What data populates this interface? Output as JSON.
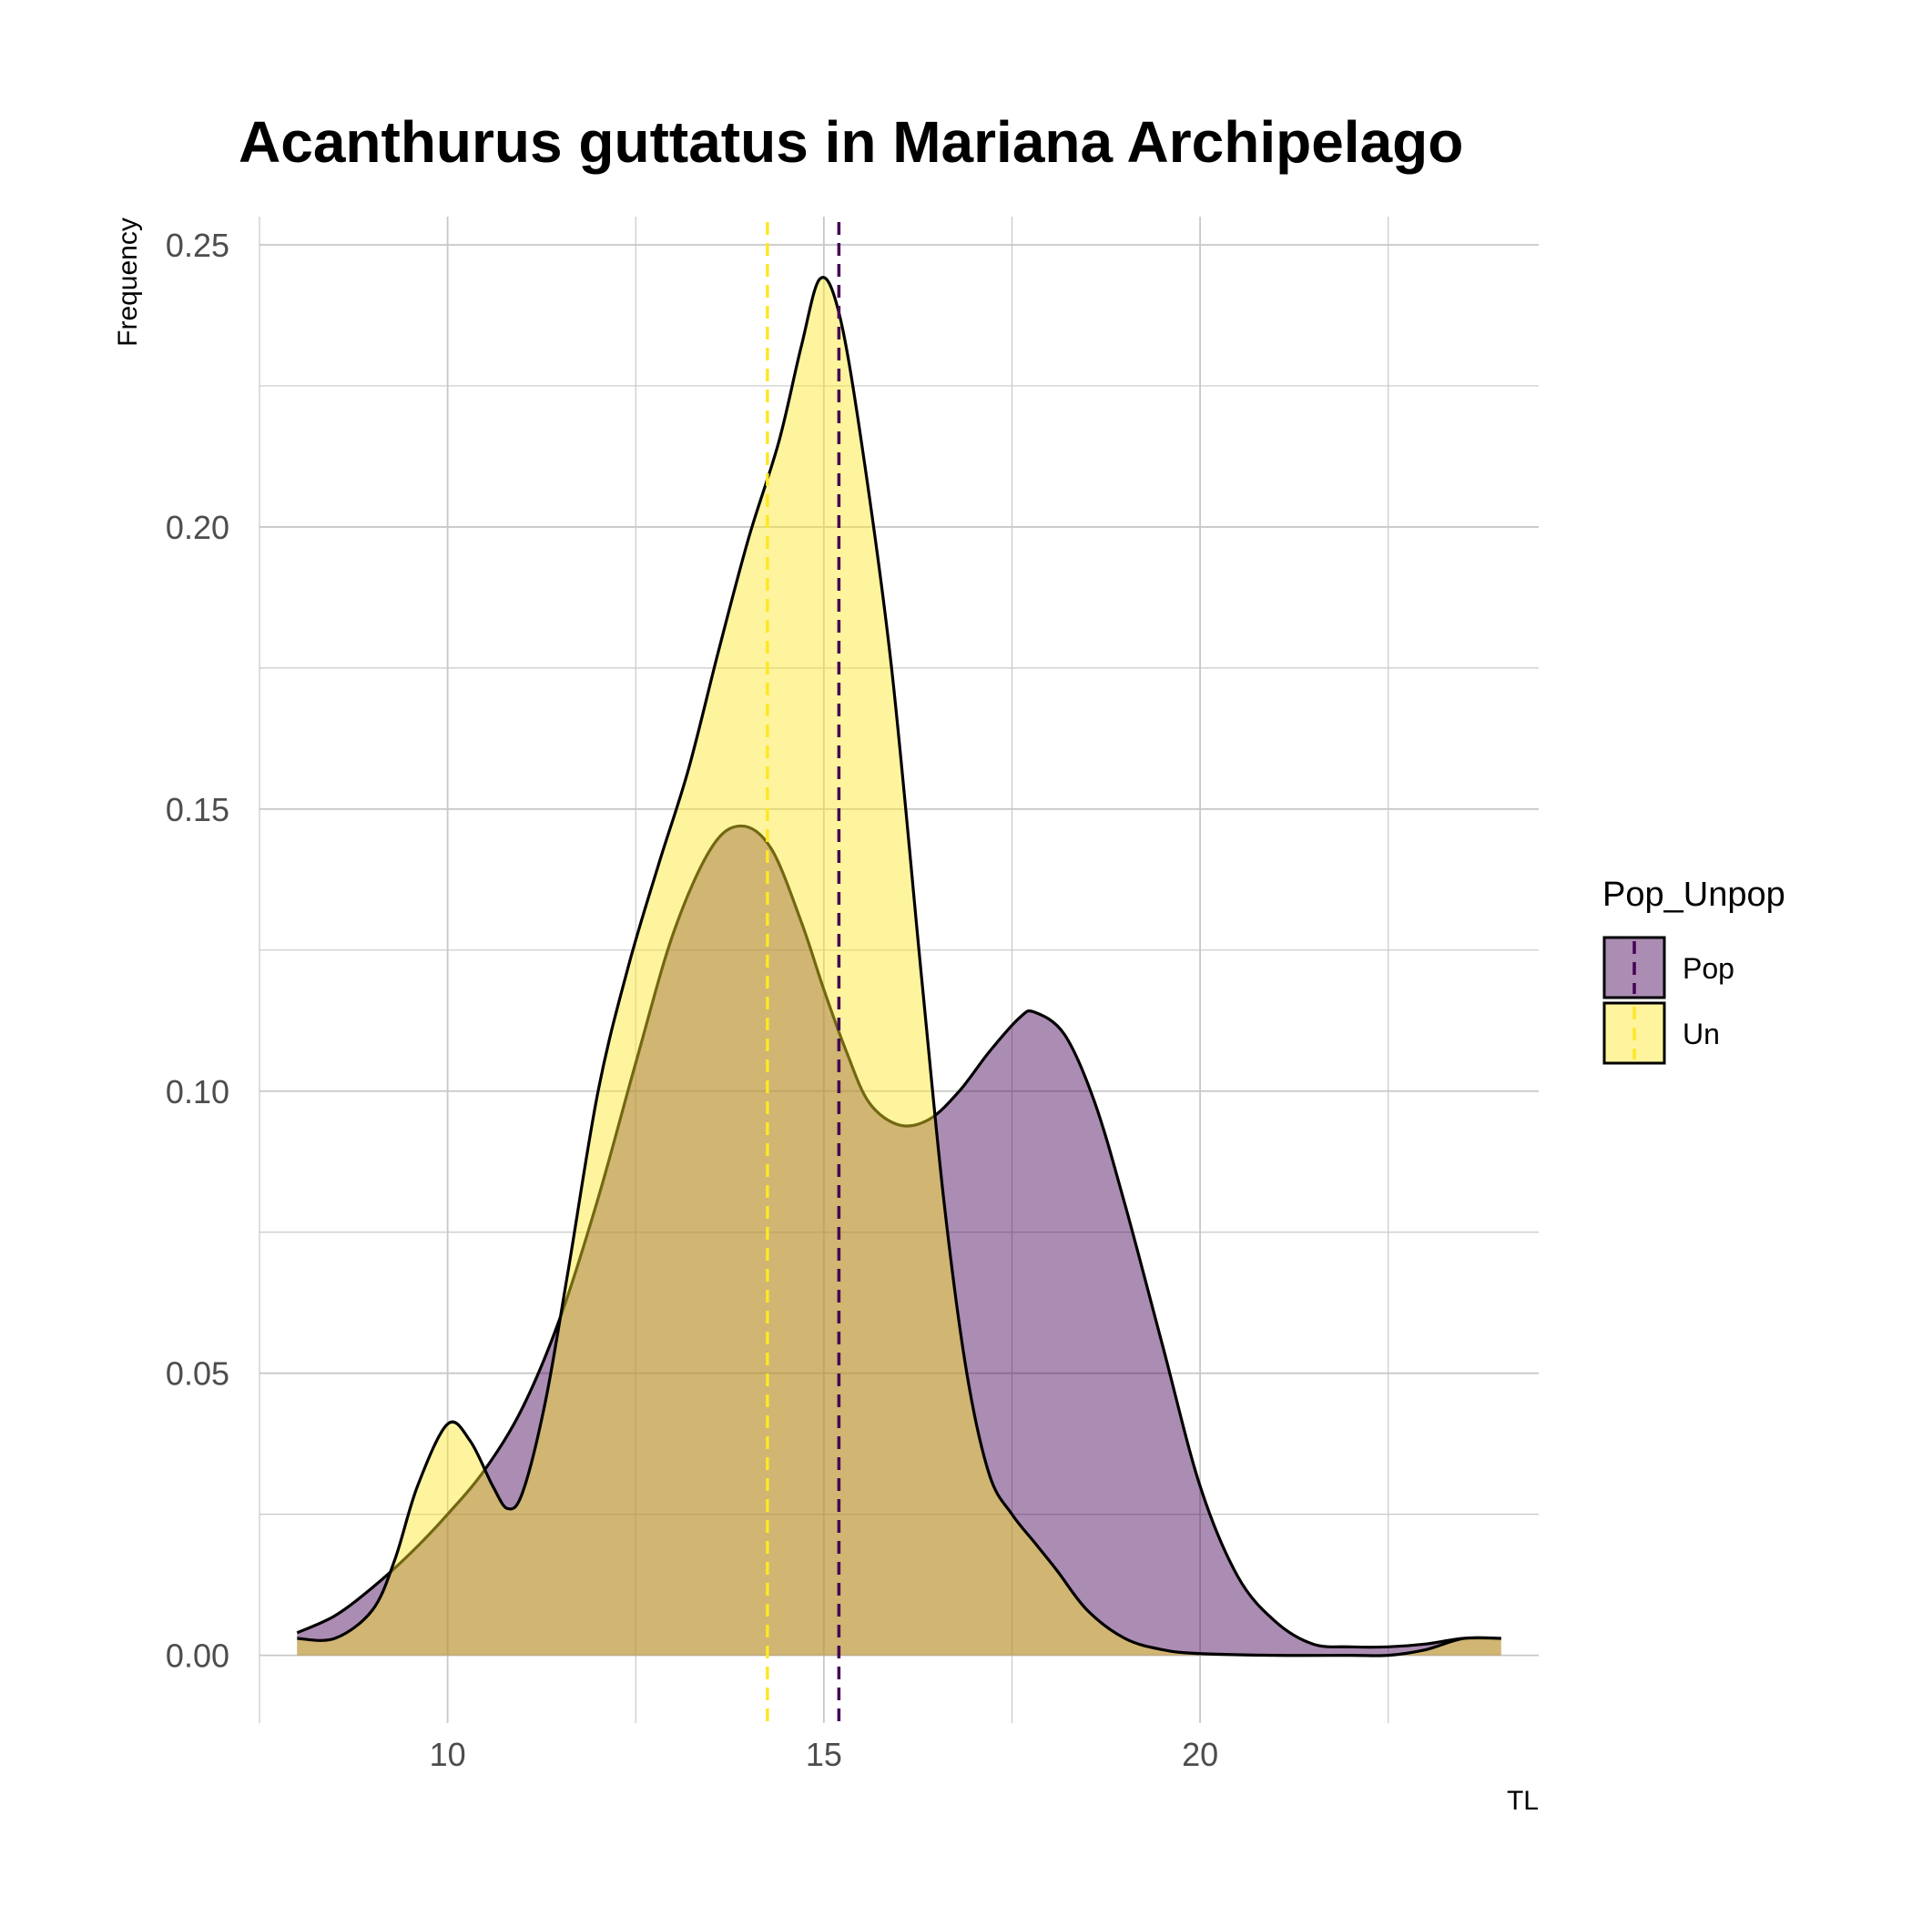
{
  "chart_data": {
    "type": "area",
    "title": "Acanthurus guttatus in Mariana Archipelago",
    "xlabel": "TL",
    "ylabel": "Frequency",
    "xlim": [
      7.5,
      24.5
    ],
    "ylim": [
      -0.012,
      0.255
    ],
    "x_ticks": [
      {
        "value": 10,
        "label": "10"
      },
      {
        "value": 15,
        "label": "15"
      },
      {
        "value": 20,
        "label": "20"
      }
    ],
    "x_minor_ticks": [
      7.5,
      12.5,
      17.5,
      22.5
    ],
    "y_ticks": [
      {
        "value": 0.0,
        "label": "0.00"
      },
      {
        "value": 0.05,
        "label": "0.05"
      },
      {
        "value": 0.1,
        "label": "0.10"
      },
      {
        "value": 0.15,
        "label": "0.15"
      },
      {
        "value": 0.2,
        "label": "0.20"
      },
      {
        "value": 0.25,
        "label": "0.25"
      }
    ],
    "y_minor_ticks": [
      0.025,
      0.075,
      0.125,
      0.175,
      0.225
    ],
    "grid": true,
    "legend": {
      "title": "Pop_Unpop",
      "position": "right"
    },
    "series": [
      {
        "name": "Pop",
        "fill": "#440154",
        "fill_opacity": 0.45,
        "mean_line": 15.2,
        "mean_line_color": "#440154",
        "points": [
          [
            8.0,
            0.004
          ],
          [
            8.5,
            0.007
          ],
          [
            9.0,
            0.012
          ],
          [
            9.5,
            0.018
          ],
          [
            10.0,
            0.025
          ],
          [
            10.5,
            0.033
          ],
          [
            11.0,
            0.044
          ],
          [
            11.5,
            0.06
          ],
          [
            12.0,
            0.081
          ],
          [
            12.5,
            0.105
          ],
          [
            13.0,
            0.128
          ],
          [
            13.5,
            0.143
          ],
          [
            13.9,
            0.147
          ],
          [
            14.3,
            0.143
          ],
          [
            14.7,
            0.13
          ],
          [
            15.0,
            0.118
          ],
          [
            15.3,
            0.107
          ],
          [
            15.6,
            0.098
          ],
          [
            16.0,
            0.094
          ],
          [
            16.4,
            0.095
          ],
          [
            16.8,
            0.1
          ],
          [
            17.2,
            0.107
          ],
          [
            17.6,
            0.113
          ],
          [
            17.8,
            0.114
          ],
          [
            18.2,
            0.11
          ],
          [
            18.6,
            0.098
          ],
          [
            19.0,
            0.08
          ],
          [
            19.5,
            0.055
          ],
          [
            20.0,
            0.03
          ],
          [
            20.5,
            0.014
          ],
          [
            21.0,
            0.006
          ],
          [
            21.5,
            0.002
          ],
          [
            22.0,
            0.0015
          ],
          [
            22.5,
            0.0015
          ],
          [
            23.0,
            0.002
          ],
          [
            23.5,
            0.003
          ],
          [
            24.0,
            0.003
          ]
        ]
      },
      {
        "name": "Un",
        "fill": "#fde725",
        "fill_opacity": 0.45,
        "mean_line": 14.25,
        "mean_line_color": "#fde725",
        "points": [
          [
            8.0,
            0.003
          ],
          [
            8.5,
            0.003
          ],
          [
            9.0,
            0.008
          ],
          [
            9.3,
            0.017
          ],
          [
            9.6,
            0.03
          ],
          [
            10.0,
            0.041
          ],
          [
            10.3,
            0.038
          ],
          [
            10.6,
            0.03
          ],
          [
            10.8,
            0.026
          ],
          [
            11.0,
            0.029
          ],
          [
            11.3,
            0.045
          ],
          [
            11.6,
            0.068
          ],
          [
            12.0,
            0.1
          ],
          [
            12.4,
            0.122
          ],
          [
            12.8,
            0.14
          ],
          [
            13.2,
            0.157
          ],
          [
            13.6,
            0.178
          ],
          [
            14.0,
            0.198
          ],
          [
            14.4,
            0.215
          ],
          [
            14.7,
            0.232
          ],
          [
            14.95,
            0.244
          ],
          [
            15.2,
            0.238
          ],
          [
            15.5,
            0.215
          ],
          [
            15.9,
            0.175
          ],
          [
            16.3,
            0.12
          ],
          [
            16.6,
            0.08
          ],
          [
            16.9,
            0.05
          ],
          [
            17.2,
            0.032
          ],
          [
            17.5,
            0.025
          ],
          [
            17.8,
            0.02
          ],
          [
            18.1,
            0.015
          ],
          [
            18.5,
            0.008
          ],
          [
            19.0,
            0.003
          ],
          [
            19.5,
            0.001
          ],
          [
            20.0,
            0.0003
          ],
          [
            21.0,
            0.0
          ],
          [
            22.0,
            0.0
          ],
          [
            22.5,
            0.0
          ],
          [
            23.0,
            0.001
          ],
          [
            23.5,
            0.003
          ],
          [
            24.0,
            0.003
          ]
        ]
      }
    ]
  }
}
